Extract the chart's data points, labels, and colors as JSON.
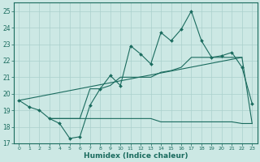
{
  "xlabel": "Humidex (Indice chaleur)",
  "background_color": "#cce8e4",
  "grid_color": "#aad0cc",
  "line_color": "#1a6b5e",
  "xlim": [
    -0.5,
    23.5
  ],
  "ylim": [
    17.0,
    25.5
  ],
  "yticks": [
    17,
    18,
    19,
    20,
    21,
    22,
    23,
    24,
    25
  ],
  "xticks": [
    0,
    1,
    2,
    3,
    4,
    5,
    6,
    7,
    8,
    9,
    10,
    11,
    12,
    13,
    14,
    15,
    16,
    17,
    18,
    19,
    20,
    21,
    22,
    23
  ],
  "line1_x": [
    0,
    1,
    2,
    3,
    4,
    5,
    6,
    7,
    8,
    9,
    10,
    11,
    12,
    13,
    14,
    15,
    16,
    17,
    18,
    19,
    20,
    21,
    22,
    23
  ],
  "line1_y": [
    19.6,
    19.2,
    19.0,
    18.5,
    18.2,
    17.3,
    17.4,
    19.3,
    20.3,
    21.1,
    20.5,
    22.9,
    22.4,
    21.8,
    23.7,
    23.2,
    23.9,
    25.0,
    23.2,
    22.2,
    22.3,
    22.5,
    21.6,
    19.4
  ],
  "line2_x": [
    3,
    4,
    5,
    6,
    7,
    8,
    9,
    10,
    11,
    12,
    13,
    14,
    15,
    16,
    17,
    18,
    19,
    20,
    21,
    22,
    23
  ],
  "line2_y": [
    18.5,
    18.5,
    18.5,
    18.5,
    20.3,
    20.3,
    20.5,
    21.0,
    21.0,
    21.0,
    21.0,
    21.3,
    21.4,
    21.6,
    22.2,
    22.2,
    22.2,
    22.2,
    22.2,
    22.2,
    18.2
  ],
  "line3_x": [
    3,
    4,
    5,
    6,
    7,
    8,
    9,
    10,
    11,
    12,
    13,
    14,
    15,
    16,
    17,
    18,
    19,
    20,
    21,
    22,
    23
  ],
  "line3_y": [
    18.5,
    18.5,
    18.5,
    18.5,
    18.5,
    18.5,
    18.5,
    18.5,
    18.5,
    18.5,
    18.5,
    18.3,
    18.3,
    18.3,
    18.3,
    18.3,
    18.3,
    18.3,
    18.3,
    18.2,
    18.2
  ],
  "line4_x": [
    0,
    22
  ],
  "line4_y": [
    19.6,
    22.2
  ]
}
